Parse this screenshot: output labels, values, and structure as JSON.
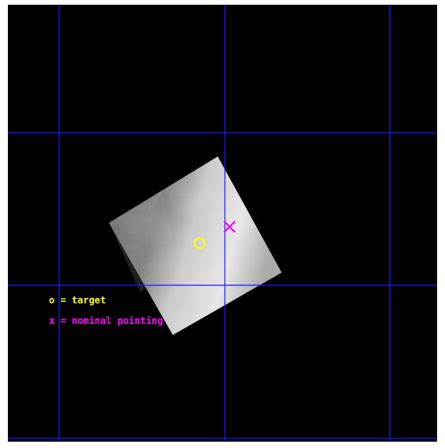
{
  "legend": {
    "items": [
      {
        "label": "o = target"
      },
      {
        "label": "x = nominal pointing"
      }
    ]
  }
}
